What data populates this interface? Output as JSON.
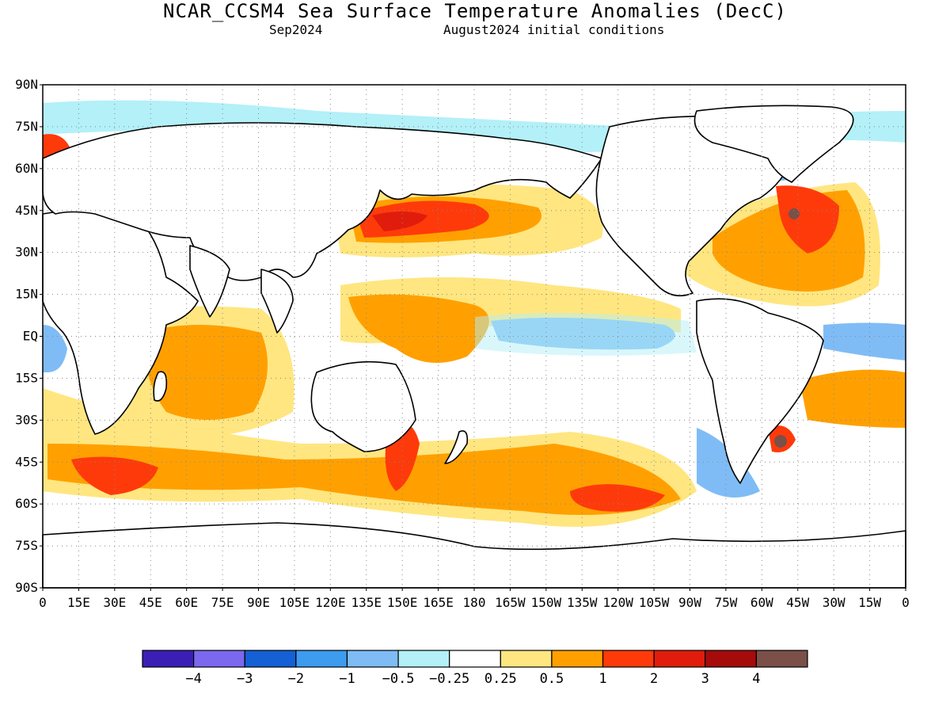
{
  "title": "NCAR_CCSM4 Sea Surface Temperature Anomalies (DecC)",
  "subtitle_left": "Sep2024",
  "subtitle_right": "August2024 initial conditions",
  "lat_ticks": [
    "90N",
    "75N",
    "60N",
    "45N",
    "30N",
    "15N",
    "EQ",
    "15S",
    "30S",
    "45S",
    "60S",
    "75S",
    "90S"
  ],
  "lon_ticks": [
    "0",
    "15E",
    "30E",
    "45E",
    "60E",
    "75E",
    "90E",
    "105E",
    "120E",
    "135E",
    "150E",
    "165E",
    "180",
    "165W",
    "150W",
    "135W",
    "120W",
    "105W",
    "90W",
    "75W",
    "60W",
    "45W",
    "30W",
    "15W",
    "0"
  ],
  "colorbar": {
    "colors": [
      "#3b1fb5",
      "#7b68ee",
      "#1560d4",
      "#3d9bf0",
      "#7fbcf5",
      "#b3f0f8",
      "#ffffff",
      "#ffe680",
      "#ffa000",
      "#ff3a0a",
      "#e01c0c",
      "#a60b0b",
      "#7a5048"
    ],
    "labels": [
      "−4",
      "−3",
      "−2",
      "−1",
      "−0.5",
      "−0.25",
      "0.25",
      "0.5",
      "1",
      "2",
      "3",
      "4"
    ]
  },
  "map": {
    "ocean_color": "#ffffff",
    "coastline_color": "#000000",
    "grid": true
  }
}
